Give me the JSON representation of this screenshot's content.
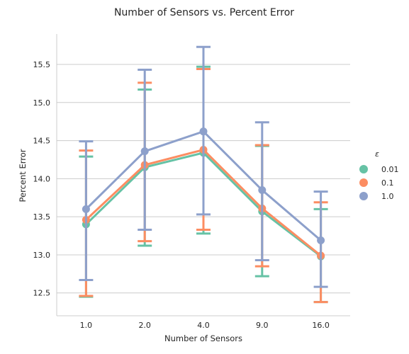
{
  "chart_data": {
    "type": "line",
    "title": "Number of Sensors vs. Percent Error",
    "xlabel": "Number of Sensors",
    "ylabel": "Percent Error",
    "categories": [
      "1.0",
      "2.0",
      "4.0",
      "9.0",
      "16.0"
    ],
    "ylim": [
      12.2,
      15.9
    ],
    "yticks": [
      "12.5",
      "13.0",
      "13.5",
      "14.0",
      "14.5",
      "15.0",
      "15.5"
    ],
    "grid": "horizontal",
    "legend": {
      "title": "ε",
      "placement": "right"
    },
    "series": [
      {
        "name": "0.01",
        "color": "#66c2a5",
        "values": [
          13.4,
          14.15,
          14.34,
          13.57,
          12.98
        ],
        "ci_low": [
          12.45,
          13.12,
          13.28,
          12.72,
          12.38
        ],
        "ci_high": [
          14.29,
          15.17,
          15.47,
          14.43,
          13.6
        ]
      },
      {
        "name": "0.1",
        "color": "#fc8d62",
        "values": [
          13.46,
          14.18,
          14.38,
          13.61,
          12.99
        ],
        "ci_low": [
          12.46,
          13.18,
          13.33,
          12.85,
          12.38
        ],
        "ci_high": [
          14.37,
          15.26,
          15.44,
          14.44,
          13.69
        ]
      },
      {
        "name": "1.0",
        "color": "#8da0cb",
        "values": [
          13.6,
          14.36,
          14.62,
          13.85,
          13.19
        ],
        "ci_low": [
          12.67,
          13.33,
          13.53,
          12.93,
          12.58
        ],
        "ci_high": [
          14.49,
          15.43,
          15.73,
          14.74,
          13.83
        ]
      }
    ]
  }
}
